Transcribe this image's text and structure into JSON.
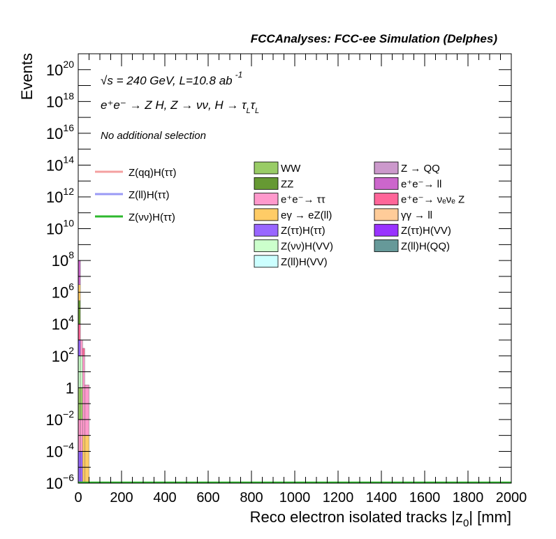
{
  "chart_data": {
    "type": "bar",
    "stacked": true,
    "title": "FCCAnalyses: FCC-ee Simulation (Delphes)",
    "xlabel_main": "Reco electron isolated tracks |z",
    "xlabel_sub": "0",
    "xlabel_end": "| [mm]",
    "ylabel": "Events",
    "log_y": true,
    "xlim": [
      0,
      2000
    ],
    "ylim": [
      1e-06,
      1e+21
    ],
    "x_ticks": [
      0,
      200,
      400,
      600,
      800,
      1000,
      1200,
      1400,
      1600,
      1800,
      2000
    ],
    "x_tick_labels": [
      "0",
      "200",
      "400",
      "600",
      "800",
      "1000",
      "1200",
      "1400",
      "1600",
      "1800",
      "2000"
    ],
    "y_ticks": [
      {
        "value": 1e-06,
        "base": "10",
        "exp": "−6"
      },
      {
        "value": 0.0001,
        "base": "10",
        "exp": "−4"
      },
      {
        "value": 0.01,
        "base": "10",
        "exp": "−2"
      },
      {
        "value": 1,
        "base": "1",
        "exp": ""
      },
      {
        "value": 100.0,
        "base": "10",
        "exp": "2"
      },
      {
        "value": 10000.0,
        "base": "10",
        "exp": "4"
      },
      {
        "value": 1000000.0,
        "base": "10",
        "exp": "6"
      },
      {
        "value": 100000000.0,
        "base": "10",
        "exp": "8"
      },
      {
        "value": 10000000000.0,
        "base": "10",
        "exp": "10"
      },
      {
        "value": 1000000000000.0,
        "base": "10",
        "exp": "12"
      },
      {
        "value": 100000000000000.0,
        "base": "10",
        "exp": "14"
      },
      {
        "value": 1e+16,
        "base": "10",
        "exp": "16"
      },
      {
        "value": 1e+18,
        "base": "10",
        "exp": "18"
      },
      {
        "value": 1e+20,
        "base": "10",
        "exp": "20"
      }
    ],
    "annotations": {
      "energy_sqrt": "√s",
      "energy": " = 240 GeV, L=10.8 ab",
      "energy_exp": "-1",
      "process": "e⁺e⁻ → Z H, Z → νν, H → τ",
      "process_sub1": "L",
      "process_tau": "τ",
      "process_sub2": "L",
      "selection": "No additional selection"
    },
    "bins": [
      {
        "x_low": 0,
        "x_high": 10,
        "segments": [
          {
            "series": "Z(ττ)H(ττ)",
            "low": 1e-06,
            "high": 0.0001
          },
          {
            "series": "e⁺e⁻→ ττ",
            "low": 0.0001,
            "high": 0.01
          },
          {
            "series": "WW",
            "low": 0.01,
            "high": 1
          },
          {
            "series": "Z(νν)H(VV)",
            "low": 1,
            "high": 100.0
          },
          {
            "series": "Z(ττ)H(ττ)",
            "low": 100.0,
            "high": 1000.0
          },
          {
            "series": "e⁺e⁻→ νₑνₑ Z",
            "low": 1000.0,
            "high": 10000.0
          },
          {
            "series": "ZZ",
            "low": 10000.0,
            "high": 300000.0
          },
          {
            "series": "eγ → eZ(ll)",
            "low": 300000.0,
            "high": 3000000.0
          },
          {
            "series": "e⁺e⁻→ ll",
            "low": 3000000.0,
            "high": 100000000.0
          }
        ]
      },
      {
        "x_low": 10,
        "x_high": 20,
        "segments": [
          {
            "series": "Z(ττ)H(ττ)",
            "low": 1e-06,
            "high": 0.0001
          },
          {
            "series": "e⁺e⁻→ ττ",
            "low": 0.0001,
            "high": 0.01
          },
          {
            "series": "WW",
            "low": 0.01,
            "high": 1
          },
          {
            "series": "Z(νν)H(VV)",
            "low": 1,
            "high": 100.0
          },
          {
            "series": "e⁺e⁻→ ττ",
            "low": 100.0,
            "high": 1000.0
          }
        ]
      },
      {
        "x_low": 20,
        "x_high": 30,
        "segments": [
          {
            "series": "eγ → eZ(ll)",
            "low": 1e-06,
            "high": 0.001
          },
          {
            "series": "e⁺e⁻→ ττ",
            "low": 0.001,
            "high": 100.0
          },
          {
            "series": "e⁺e⁻→ νₑνₑ Z",
            "low": 100.0,
            "high": 300.0
          }
        ]
      },
      {
        "x_low": 30,
        "x_high": 50,
        "segments": [
          {
            "series": "eγ → eZ(ll)",
            "low": 1e-06,
            "high": 0.001
          },
          {
            "series": "e⁺e⁻→ ττ",
            "low": 0.001,
            "high": 1.5
          }
        ]
      }
    ],
    "signal_lines": [
      {
        "name": "Z(νν)H(ττ)",
        "y": 1e-06,
        "x_range": [
          0,
          2000
        ]
      }
    ],
    "legend_lines": [
      {
        "name": "Z(qq)H(ττ)",
        "color": "#f4a0a0"
      },
      {
        "name": "Z(ll)H(ττ)",
        "color": "#9a9af5"
      },
      {
        "name": "Z(νν)H(ττ)",
        "color": "#2eb82e"
      }
    ],
    "legend_boxes": [
      {
        "name": "WW",
        "color": "#99cc66"
      },
      {
        "name": "Z → QQ",
        "color": "#cc99cc"
      },
      {
        "name": "ZZ",
        "color": "#669933"
      },
      {
        "name": "e⁺e⁻→ ll",
        "color": "#cc66cc"
      },
      {
        "name": "e⁺e⁻→ ττ",
        "color": "#ff99cc"
      },
      {
        "name": "e⁺e⁻→ νₑνₑ Z",
        "color": "#ff6699"
      },
      {
        "name": "eγ → eZ(ll)",
        "color": "#ffcc66"
      },
      {
        "name": "γγ → ll",
        "color": "#ffcc99"
      },
      {
        "name": "Z(ττ)H(ττ)",
        "color": "#9966ff"
      },
      {
        "name": "Z(ττ)H(VV)",
        "color": "#9933ff"
      },
      {
        "name": "Z(νν)H(VV)",
        "color": "#ccffcc"
      },
      {
        "name": "Z(ll)H(QQ)",
        "color": "#669999"
      },
      {
        "name": "Z(ll)H(VV)",
        "color": "#ccffff"
      }
    ]
  }
}
